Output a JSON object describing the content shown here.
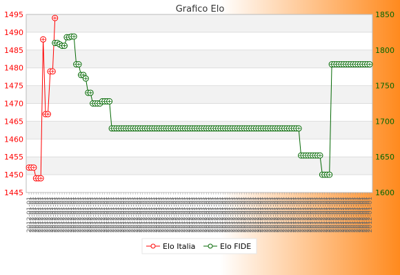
{
  "chart_data": {
    "type": "line",
    "title": "Grafico Elo",
    "y_left": {
      "min": 1445,
      "max": 1495,
      "step": 5,
      "color": "#ff0000"
    },
    "y_right": {
      "min": 1600,
      "max": 1850,
      "step": 50,
      "color": "#006600"
    },
    "grid": true,
    "legend_position": "bottom-center",
    "x_tick_labels_note": "dense rotated date labels (illegible)",
    "series": [
      {
        "name": "Elo Italia",
        "axis": "left",
        "color": "#ff0000",
        "points": [
          [
            0,
            1452
          ],
          [
            1,
            1452
          ],
          [
            2,
            1452
          ],
          [
            3,
            1449
          ],
          [
            4,
            1449
          ],
          [
            5,
            1449
          ],
          [
            6,
            1488
          ],
          [
            7,
            1467
          ],
          [
            8,
            1467
          ],
          [
            9,
            1479
          ],
          [
            10,
            1479
          ],
          [
            11,
            1494
          ]
        ]
      },
      {
        "name": "Elo FIDE",
        "axis": "right",
        "color": "#006600",
        "points": [
          [
            11,
            1810
          ],
          [
            12,
            1810
          ],
          [
            13,
            1808
          ],
          [
            14,
            1806
          ],
          [
            15,
            1806
          ],
          [
            16,
            1818
          ],
          [
            17,
            1818
          ],
          [
            18,
            1819
          ],
          [
            19,
            1819
          ],
          [
            20,
            1780
          ],
          [
            21,
            1780
          ],
          [
            22,
            1765
          ],
          [
            23,
            1765
          ],
          [
            24,
            1760
          ],
          [
            25,
            1740
          ],
          [
            26,
            1740
          ],
          [
            27,
            1725
          ],
          [
            28,
            1725
          ],
          [
            29,
            1725
          ],
          [
            30,
            1725
          ],
          [
            31,
            1728
          ],
          [
            32,
            1728
          ],
          [
            33,
            1728
          ],
          [
            34,
            1728
          ],
          [
            35,
            1690
          ],
          [
            36,
            1690
          ],
          [
            37,
            1690
          ],
          [
            38,
            1690
          ],
          [
            39,
            1690
          ],
          [
            40,
            1690
          ],
          [
            41,
            1690
          ],
          [
            42,
            1690
          ],
          [
            43,
            1690
          ],
          [
            44,
            1690
          ],
          [
            45,
            1690
          ],
          [
            46,
            1690
          ],
          [
            47,
            1690
          ],
          [
            48,
            1690
          ],
          [
            49,
            1690
          ],
          [
            50,
            1690
          ],
          [
            51,
            1690
          ],
          [
            52,
            1690
          ],
          [
            53,
            1690
          ],
          [
            54,
            1690
          ],
          [
            55,
            1690
          ],
          [
            56,
            1690
          ],
          [
            57,
            1690
          ],
          [
            58,
            1690
          ],
          [
            59,
            1690
          ],
          [
            60,
            1690
          ],
          [
            61,
            1690
          ],
          [
            62,
            1690
          ],
          [
            63,
            1690
          ],
          [
            64,
            1690
          ],
          [
            65,
            1690
          ],
          [
            66,
            1690
          ],
          [
            67,
            1690
          ],
          [
            68,
            1690
          ],
          [
            69,
            1690
          ],
          [
            70,
            1690
          ],
          [
            71,
            1690
          ],
          [
            72,
            1690
          ],
          [
            73,
            1690
          ],
          [
            74,
            1690
          ],
          [
            75,
            1690
          ],
          [
            76,
            1690
          ],
          [
            77,
            1690
          ],
          [
            78,
            1690
          ],
          [
            79,
            1690
          ],
          [
            80,
            1690
          ],
          [
            81,
            1690
          ],
          [
            82,
            1690
          ],
          [
            83,
            1690
          ],
          [
            84,
            1690
          ],
          [
            85,
            1690
          ],
          [
            86,
            1690
          ],
          [
            87,
            1690
          ],
          [
            88,
            1690
          ],
          [
            89,
            1690
          ],
          [
            90,
            1690
          ],
          [
            91,
            1690
          ],
          [
            92,
            1690
          ],
          [
            93,
            1690
          ],
          [
            94,
            1690
          ],
          [
            95,
            1690
          ],
          [
            96,
            1690
          ],
          [
            97,
            1690
          ],
          [
            98,
            1690
          ],
          [
            99,
            1690
          ],
          [
            100,
            1690
          ],
          [
            101,
            1690
          ],
          [
            102,
            1690
          ],
          [
            103,
            1690
          ],
          [
            104,
            1690
          ],
          [
            105,
            1690
          ],
          [
            106,
            1690
          ],
          [
            107,
            1690
          ],
          [
            108,
            1690
          ],
          [
            109,
            1690
          ],
          [
            110,
            1690
          ],
          [
            111,
            1690
          ],
          [
            112,
            1690
          ],
          [
            113,
            1690
          ],
          [
            114,
            1690
          ],
          [
            115,
            1652
          ],
          [
            116,
            1652
          ],
          [
            117,
            1652
          ],
          [
            118,
            1652
          ],
          [
            119,
            1652
          ],
          [
            120,
            1652
          ],
          [
            121,
            1652
          ],
          [
            122,
            1652
          ],
          [
            123,
            1652
          ],
          [
            124,
            1625
          ],
          [
            125,
            1625
          ],
          [
            126,
            1625
          ],
          [
            127,
            1625
          ],
          [
            128,
            1780
          ],
          [
            129,
            1780
          ],
          [
            130,
            1780
          ],
          [
            131,
            1780
          ],
          [
            132,
            1780
          ],
          [
            133,
            1780
          ],
          [
            134,
            1780
          ],
          [
            135,
            1780
          ],
          [
            136,
            1780
          ],
          [
            137,
            1780
          ],
          [
            138,
            1780
          ],
          [
            139,
            1780
          ],
          [
            140,
            1780
          ],
          [
            141,
            1780
          ],
          [
            142,
            1780
          ],
          [
            143,
            1780
          ],
          [
            144,
            1780
          ]
        ]
      }
    ]
  }
}
